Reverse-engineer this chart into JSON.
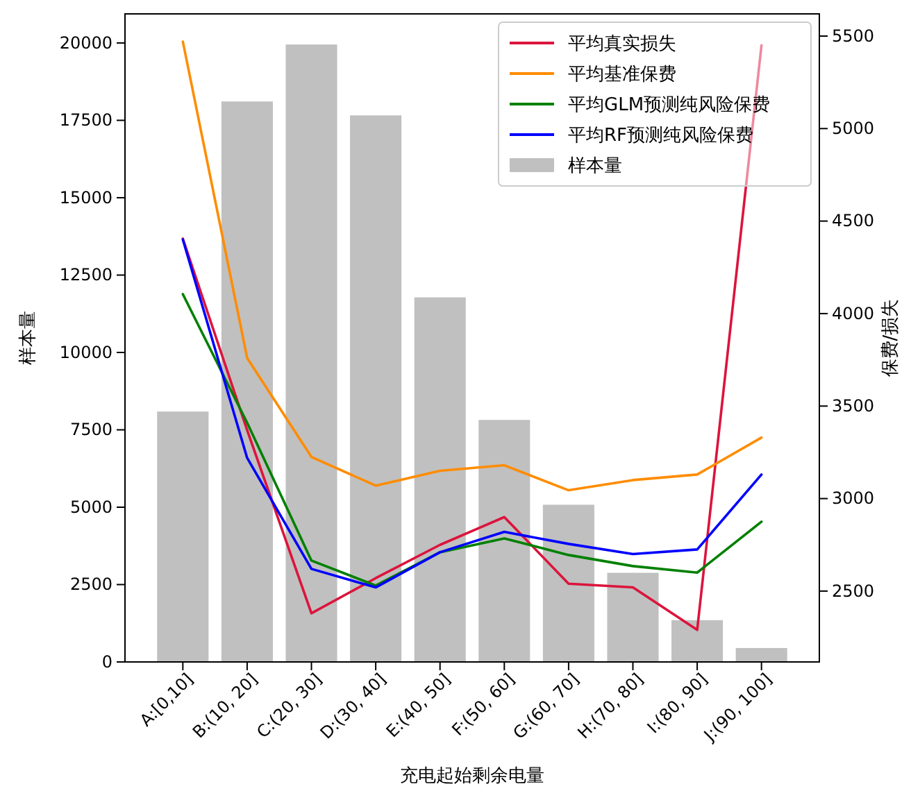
{
  "chart_data": {
    "type": "bar",
    "xlabel": "充电起始剩余电量",
    "ylabel": "样本量",
    "y2label": "保费/损失",
    "categories": [
      "A:[0,10]",
      "B:(10, 20]",
      "C:(20, 30]",
      "D:(30, 40]",
      "E:(40, 50]",
      "F:(50, 60]",
      "G:(60, 70]",
      "H:(70, 80]",
      "I:(80, 90]",
      "J:(90, 100]"
    ],
    "series": [
      {
        "name": "平均真实损失",
        "type": "line",
        "axis": "y2",
        "color": "#dc143c",
        "values": [
          4405,
          3370,
          2380,
          2570,
          2750,
          2900,
          2540,
          2520,
          2290,
          5450
        ]
      },
      {
        "name": "平均基准保费",
        "type": "line",
        "axis": "y2",
        "color": "#ff8c00",
        "values": [
          5470,
          3760,
          3225,
          3070,
          3150,
          3180,
          3045,
          3100,
          3130,
          3330
        ]
      },
      {
        "name": "平均GLM预测纯风险保费",
        "type": "line",
        "axis": "y2",
        "color": "#008000",
        "values": [
          4105,
          3410,
          2665,
          2530,
          2710,
          2785,
          2695,
          2635,
          2600,
          2875
        ]
      },
      {
        "name": "平均RF预测纯风险保费",
        "type": "line",
        "axis": "y2",
        "color": "#0000ff",
        "values": [
          4400,
          3220,
          2620,
          2520,
          2710,
          2820,
          2755,
          2700,
          2725,
          3130
        ]
      },
      {
        "name": "样本量",
        "color": "#c0c0c0",
        "values": [
          8090,
          18110,
          19950,
          17660,
          11780,
          7820,
          5080,
          2880,
          1350,
          450
        ]
      }
    ],
    "ylim": [
      0,
      20940
    ],
    "yticks": [
      0,
      2500,
      5000,
      7500,
      10000,
      12500,
      15000,
      17500,
      20000
    ],
    "y2lim": [
      2117,
      5620
    ],
    "y2ticks": [
      2500,
      3000,
      3500,
      4000,
      4500,
      5000,
      5500
    ],
    "legend": "top right",
    "grid": false
  }
}
